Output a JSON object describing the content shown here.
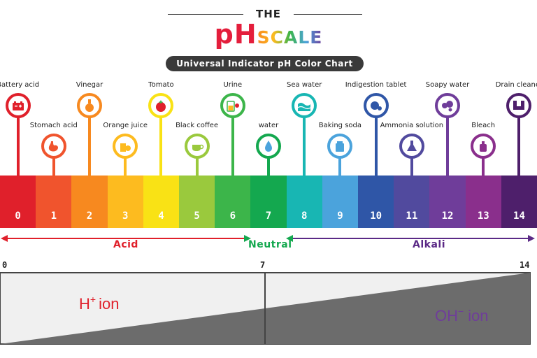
{
  "header": {
    "the": "THE",
    "title_ph": "pH",
    "title_scale": "SCALE",
    "subtitle": "Universal Indicator pH Color Chart"
  },
  "scale": {
    "colors": [
      "#e0202b",
      "#f0542d",
      "#f7891f",
      "#fdbb1f",
      "#f9e215",
      "#9ac93d",
      "#3cb54a",
      "#14a84f",
      "#18b6b3",
      "#4ba3dc",
      "#2f56a7",
      "#514a9e",
      "#6f3d9a",
      "#8a2f8c",
      "#4e1f6b"
    ],
    "numbers": [
      "0",
      "1",
      "2",
      "3",
      "4",
      "5",
      "6",
      "7",
      "8",
      "9",
      "10",
      "11",
      "12",
      "13",
      "14"
    ]
  },
  "substances": [
    {
      "name": "Battery acid",
      "ph": 0,
      "level": "high",
      "icon": "battery-icon"
    },
    {
      "name": "Stomach acid",
      "ph": 1,
      "level": "low",
      "icon": "stomach-icon"
    },
    {
      "name": "Vinegar",
      "ph": 2,
      "level": "high",
      "icon": "vinegar-bottle-icon"
    },
    {
      "name": "Orange juice",
      "ph": 3,
      "level": "low",
      "icon": "orange-juice-icon"
    },
    {
      "name": "Tomato",
      "ph": 4,
      "level": "high",
      "icon": "tomato-icon"
    },
    {
      "name": "Black coffee",
      "ph": 5,
      "level": "low",
      "icon": "coffee-cup-icon"
    },
    {
      "name": "Urine",
      "ph": 6,
      "level": "high",
      "icon": "urine-sample-icon"
    },
    {
      "name": "water",
      "ph": 7,
      "level": "low",
      "icon": "water-drop-icon"
    },
    {
      "name": "Sea water",
      "ph": 8,
      "level": "high",
      "icon": "wave-icon"
    },
    {
      "name": "Baking soda",
      "ph": 9,
      "level": "low",
      "icon": "baking-soda-icon"
    },
    {
      "name": "Indigestion tablet",
      "ph": 10,
      "level": "high",
      "icon": "tablet-icon"
    },
    {
      "name": "Ammonia solution",
      "ph": 11,
      "level": "low",
      "icon": "flask-icon"
    },
    {
      "name": "Soapy water",
      "ph": 12,
      "level": "high",
      "icon": "soap-bubbles-icon"
    },
    {
      "name": "Bleach",
      "ph": 13,
      "level": "low",
      "icon": "bleach-bottle-icon"
    },
    {
      "name": "Drain cleaner",
      "ph": 14,
      "level": "high",
      "icon": "drain-pipe-icon"
    }
  ],
  "classes": {
    "acid": "Acid",
    "neutral": "Neutral",
    "alkali": "Alkali",
    "acid_color": "#e0202b",
    "neutral_color": "#14a84f",
    "alkali_color": "#5b2a86"
  },
  "ions": {
    "axis_ticks": [
      "0",
      "7",
      "14"
    ],
    "h_base": "H",
    "h_sup": "+",
    "h_word": "ion",
    "oh_base": "OH",
    "oh_sup": "−",
    "oh_word": "ion",
    "h_color": "#e0202b",
    "oh_color": "#6f3d9a"
  }
}
